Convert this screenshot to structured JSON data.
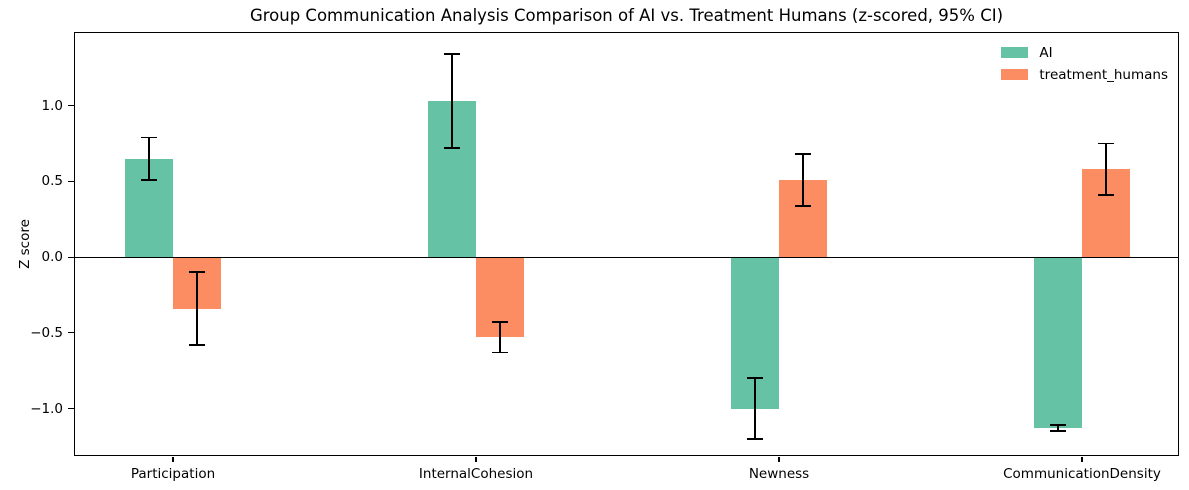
{
  "chart_data": {
    "type": "bar",
    "title": "Group Communication Analysis Comparison of AI vs. Treatment Humans (z-scored, 95% CI)",
    "xlabel": "",
    "ylabel": "Z score",
    "categories": [
      "Participation",
      "InternalCohesion",
      "Newness",
      "CommunicationDensity"
    ],
    "series": [
      {
        "name": "AI",
        "color": "#66C2A5",
        "values": [
          0.65,
          1.03,
          -1.0,
          -1.13
        ],
        "ci95": [
          0.14,
          0.31,
          0.2,
          0.02
        ]
      },
      {
        "name": "treatment_humans",
        "color": "#FC8D62",
        "values": [
          -0.34,
          -0.53,
          0.51,
          0.58
        ],
        "ci95": [
          0.24,
          0.1,
          0.17,
          0.17
        ]
      }
    ],
    "ylim": [
      -1.32,
      1.48
    ],
    "yticks": [
      1.0,
      0.5,
      0.0,
      -0.5,
      -1.0
    ],
    "ytick_labels": [
      "1.0",
      "0.5",
      "0.0",
      "−0.5",
      "−1.0"
    ],
    "grid": false,
    "error_bars": true,
    "error_bar_color": "#000000",
    "zero_line": true,
    "legend_position": "upper right",
    "background_color": "#ffffff"
  }
}
